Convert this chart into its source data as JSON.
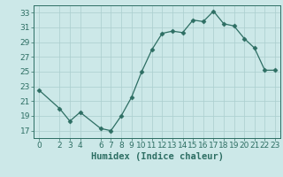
{
  "x": [
    0,
    2,
    3,
    4,
    6,
    7,
    8,
    9,
    10,
    11,
    12,
    13,
    14,
    15,
    16,
    17,
    18,
    19,
    20,
    21,
    22,
    23
  ],
  "y": [
    22.5,
    20.0,
    18.3,
    19.5,
    17.3,
    17.0,
    19.0,
    21.5,
    25.0,
    28.0,
    30.2,
    30.5,
    30.3,
    32.0,
    31.8,
    33.2,
    31.5,
    31.2,
    29.5,
    28.2,
    25.2,
    25.2
  ],
  "line_color": "#2d6e63",
  "marker": "D",
  "marker_size": 2.5,
  "bg_color": "#cce8e8",
  "grid_color": "#aacece",
  "xlabel": "Humidex (Indice chaleur)",
  "xlim": [
    -0.5,
    23.5
  ],
  "ylim": [
    16,
    34
  ],
  "yticks": [
    17,
    19,
    21,
    23,
    25,
    27,
    29,
    31,
    33
  ],
  "xticks": [
    0,
    2,
    3,
    4,
    6,
    7,
    8,
    9,
    10,
    11,
    12,
    13,
    14,
    15,
    16,
    17,
    18,
    19,
    20,
    21,
    22,
    23
  ],
  "tick_color": "#2d6e63",
  "axis_color": "#2d6e63",
  "label_fontsize": 6.5,
  "xlabel_fontsize": 7.5
}
